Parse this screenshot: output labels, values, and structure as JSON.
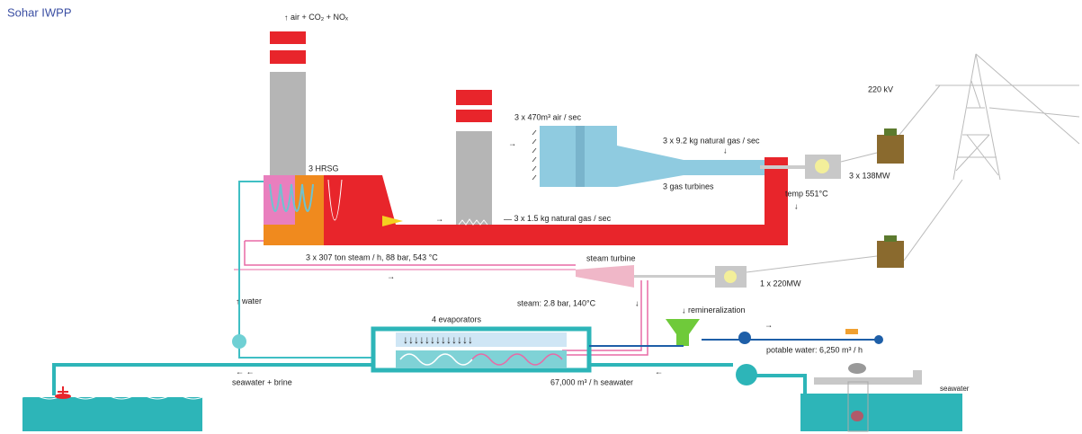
{
  "header": {
    "title": "Sohar IWPP"
  },
  "labels": {
    "exhaust": "air + CO₂ + NOₓ",
    "hrsg": "3 HRSG",
    "air": "3 x 470m³ air / sec",
    "gas_turbine_fuel": "3 x 9.2 kg natural gas / sec",
    "gas_turbines": "3 gas turbines",
    "gas_turbine_power": "3 x 138MW",
    "voltage": "220 kV",
    "temperature": "temp 551°C",
    "duct_fuel": "3 x 1.5 kg natural gas / sec",
    "steam": "3 x 307 ton steam / h, 88 bar, 543 °C",
    "steam_turbine": "steam turbine",
    "steam_turbine_power": "1 x 220MW",
    "water": "water",
    "extraction_steam": "steam: 2.8 bar, 140°C",
    "evaporators": "4 evaporators",
    "remineralization": "remineralization",
    "potable_water": "potable water:  6,250 m³ / h",
    "brine": "seawater + brine",
    "seawater_flow": "67,000 m³ / h seawater",
    "seawater_intake": "seawater"
  }
}
